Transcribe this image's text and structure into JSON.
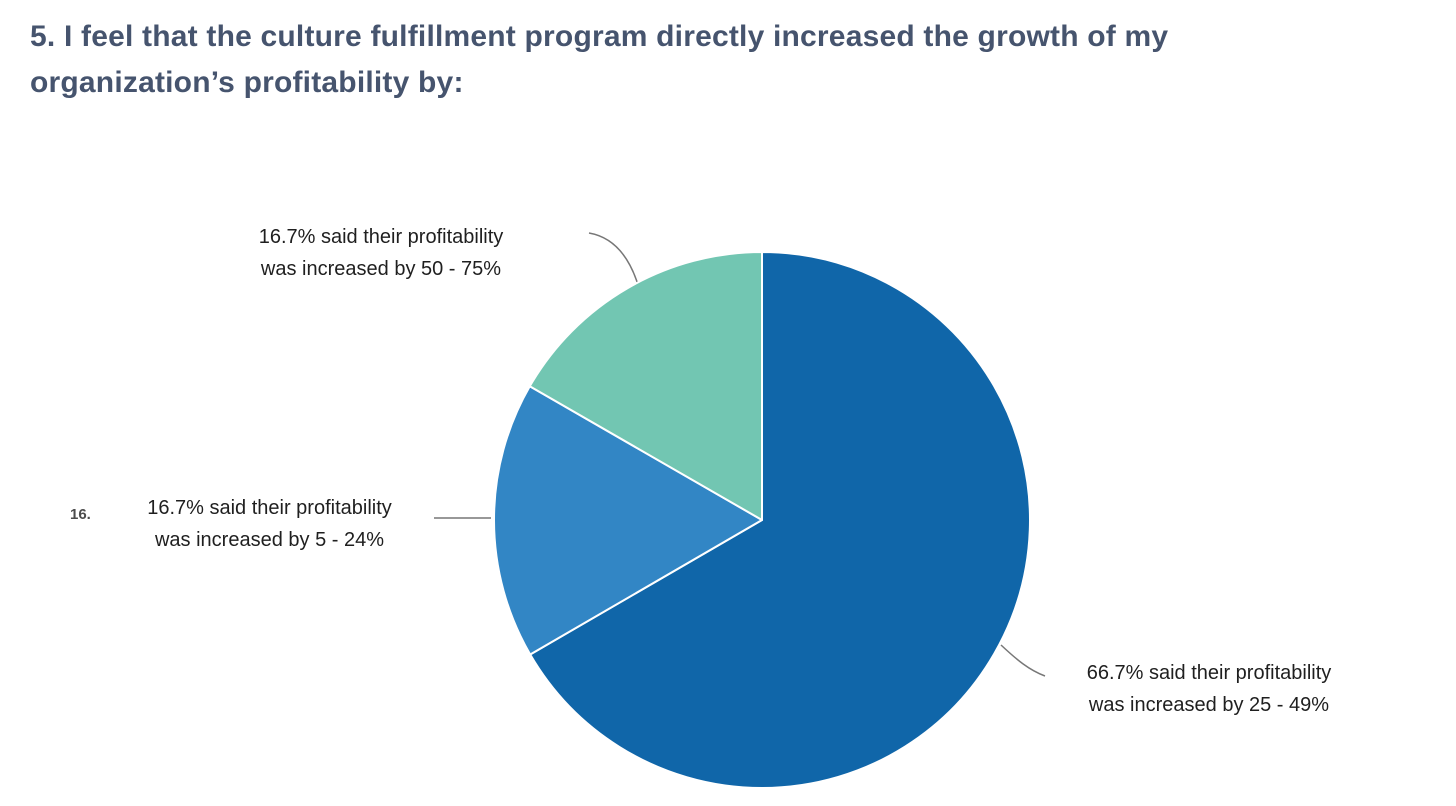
{
  "title": {
    "line1": "5. I feel that the culture fulfillment program directly increased the growth of my",
    "line2": "organization’s profitability by:"
  },
  "chart_data": {
    "type": "pie",
    "start_angle_deg": 0,
    "direction": "clockwise",
    "total_percent": 100,
    "slices": [
      {
        "label": "66.7% said their profitability was increased by 25 - 49%",
        "value": 66.7,
        "color": "#1066a9"
      },
      {
        "label": "16.7% said their profitability was increased by 5 - 24%",
        "value": 16.7,
        "color": "#3286c5"
      },
      {
        "label": "16.7% said their profitability was increased by 50 - 75%",
        "value": 16.7,
        "color": "#72c6b2"
      }
    ]
  },
  "annotations": {
    "label_50_75": {
      "line1": "16.7% said their profitability",
      "line2": "was increased by 50 - 75%"
    },
    "label_5_24": {
      "line1": "16.7% said their profitability",
      "line2": "was increased by 5 - 24%"
    },
    "label_25_49": {
      "line1": "66.7% said their profitability",
      "line2": "was increased by 25 - 49%"
    },
    "truncated_label": "16."
  },
  "colors": {
    "title_text": "#46546e",
    "label_text": "#1f1f1f",
    "leader_line": "#777777",
    "slice_dark_blue": "#1066a9",
    "slice_medium_blue": "#3286c5",
    "slice_teal": "#72c6b2",
    "background": "#ffffff"
  }
}
